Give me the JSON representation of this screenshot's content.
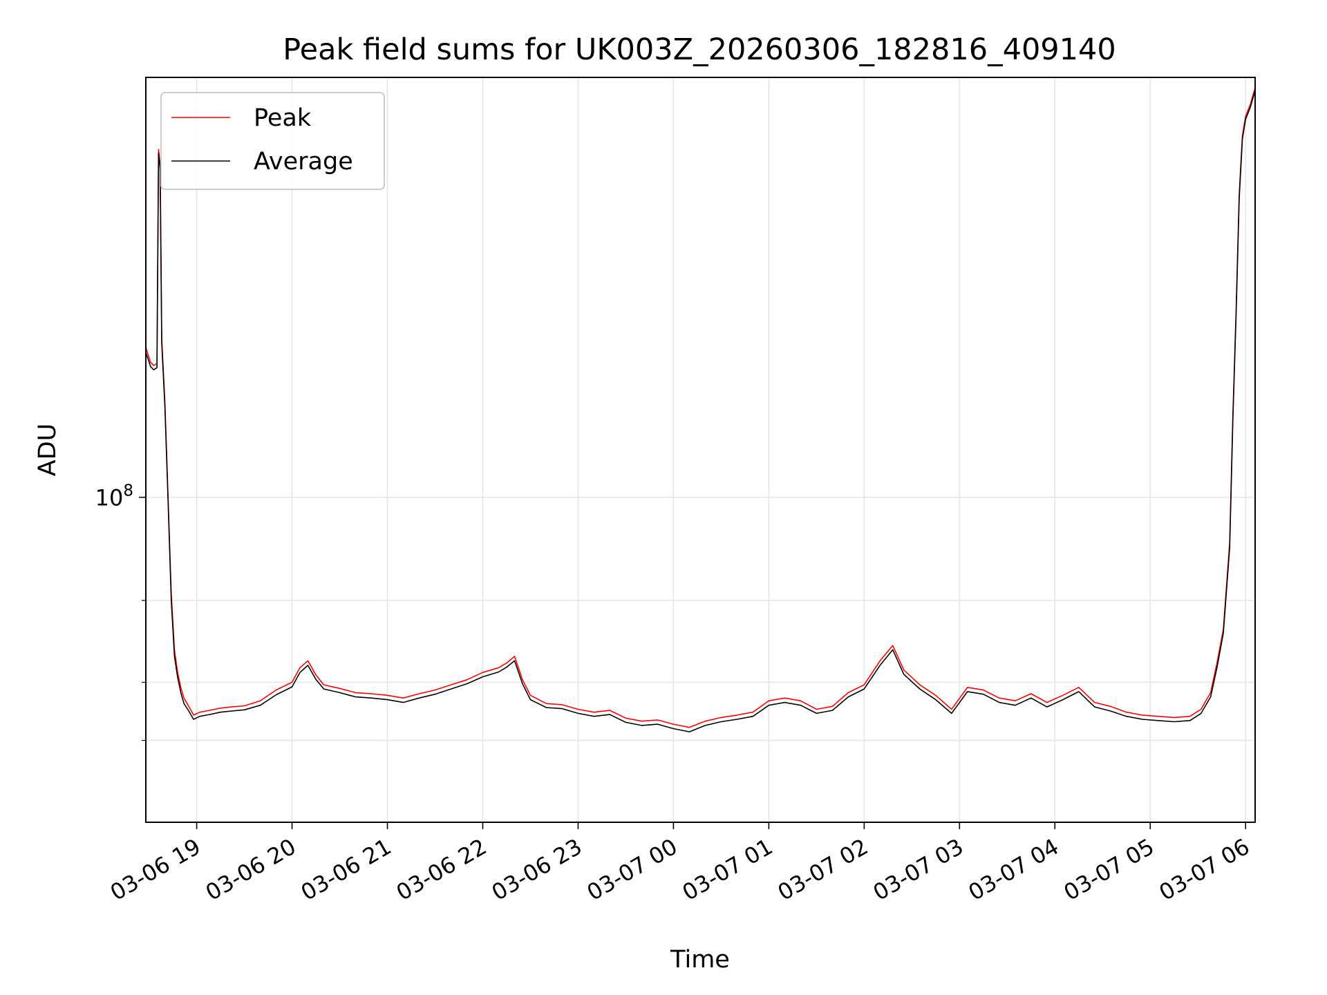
{
  "chart_data": {
    "type": "line",
    "title": "Peak field sums for UK003Z_20260306_182816_409140",
    "xlabel": "Time",
    "ylabel": "ADU",
    "yscale": "log",
    "grid": true,
    "legend_position": "top-left",
    "colors": {
      "Peak": "#ff0000",
      "Average": "#000000",
      "grid": "#e6e6e6"
    },
    "xlim": [
      "2026-03-06 18:28",
      "2026-03-07 06:06"
    ],
    "ylim": [
      20000000,
      800000000
    ],
    "x_ticks": [
      {
        "t": "2026-03-06 19:00",
        "label": "03-06 19"
      },
      {
        "t": "2026-03-06 20:00",
        "label": "03-06 20"
      },
      {
        "t": "2026-03-06 21:00",
        "label": "03-06 21"
      },
      {
        "t": "2026-03-06 22:00",
        "label": "03-06 22"
      },
      {
        "t": "2026-03-06 23:00",
        "label": "03-06 23"
      },
      {
        "t": "2026-03-07 00:00",
        "label": "03-07 00"
      },
      {
        "t": "2026-03-07 01:00",
        "label": "03-07 01"
      },
      {
        "t": "2026-03-07 02:00",
        "label": "03-07 02"
      },
      {
        "t": "2026-03-07 03:00",
        "label": "03-07 03"
      },
      {
        "t": "2026-03-07 04:00",
        "label": "03-07 04"
      },
      {
        "t": "2026-03-07 05:00",
        "label": "03-07 05"
      },
      {
        "t": "2026-03-07 06:00",
        "label": "03-07 06"
      }
    ],
    "y_ticks": [
      {
        "value": 100000000,
        "base": "10",
        "exp": "8"
      }
    ],
    "y_minor_ticks": [
      30000000,
      40000000,
      60000000
    ],
    "series": [
      {
        "name": "Peak",
        "x": [
          "2026-03-06 18:28",
          "2026-03-06 18:31",
          "2026-03-06 18:33",
          "2026-03-06 18:35",
          "2026-03-06 18:36",
          "2026-03-06 18:37",
          "2026-03-06 18:38",
          "2026-03-06 18:40",
          "2026-03-06 18:42",
          "2026-03-06 18:44",
          "2026-03-06 18:46",
          "2026-03-06 18:48",
          "2026-03-06 18:50",
          "2026-03-06 18:52",
          "2026-03-06 18:55",
          "2026-03-06 18:58",
          "2026-03-06 19:02",
          "2026-03-06 19:08",
          "2026-03-06 19:15",
          "2026-03-06 19:22",
          "2026-03-06 19:30",
          "2026-03-06 19:40",
          "2026-03-06 19:50",
          "2026-03-06 20:00",
          "2026-03-06 20:05",
          "2026-03-06 20:10",
          "2026-03-06 20:15",
          "2026-03-06 20:20",
          "2026-03-06 20:30",
          "2026-03-06 20:40",
          "2026-03-06 20:50",
          "2026-03-06 21:00",
          "2026-03-06 21:10",
          "2026-03-06 21:20",
          "2026-03-06 21:30",
          "2026-03-06 21:40",
          "2026-03-06 21:50",
          "2026-03-06 22:00",
          "2026-03-06 22:10",
          "2026-03-06 22:15",
          "2026-03-06 22:20",
          "2026-03-06 22:25",
          "2026-03-06 22:30",
          "2026-03-06 22:40",
          "2026-03-06 22:50",
          "2026-03-06 23:00",
          "2026-03-06 23:10",
          "2026-03-06 23:20",
          "2026-03-06 23:30",
          "2026-03-06 23:40",
          "2026-03-06 23:50",
          "2026-03-07 00:00",
          "2026-03-07 00:10",
          "2026-03-07 00:20",
          "2026-03-07 00:30",
          "2026-03-07 00:40",
          "2026-03-07 00:50",
          "2026-03-07 01:00",
          "2026-03-07 01:10",
          "2026-03-07 01:20",
          "2026-03-07 01:30",
          "2026-03-07 01:40",
          "2026-03-07 01:50",
          "2026-03-07 02:00",
          "2026-03-07 02:10",
          "2026-03-07 02:18",
          "2026-03-07 02:25",
          "2026-03-07 02:35",
          "2026-03-07 02:45",
          "2026-03-07 02:55",
          "2026-03-07 03:05",
          "2026-03-07 03:15",
          "2026-03-07 03:25",
          "2026-03-07 03:35",
          "2026-03-07 03:45",
          "2026-03-07 03:55",
          "2026-03-07 04:05",
          "2026-03-07 04:15",
          "2026-03-07 04:25",
          "2026-03-07 04:35",
          "2026-03-07 04:45",
          "2026-03-07 04:55",
          "2026-03-07 05:05",
          "2026-03-07 05:15",
          "2026-03-07 05:25",
          "2026-03-07 05:32",
          "2026-03-07 05:38",
          "2026-03-07 05:42",
          "2026-03-07 05:46",
          "2026-03-07 05:50",
          "2026-03-07 05:52",
          "2026-03-07 05:54",
          "2026-03-07 05:56",
          "2026-03-07 05:58",
          "2026-03-07 06:00",
          "2026-03-07 06:03",
          "2026-03-07 06:06"
        ],
        "y": [
          210000000,
          195000000,
          192000000,
          194000000,
          560000000,
          520000000,
          220000000,
          160000000,
          100000000,
          62000000,
          47000000,
          42000000,
          39000000,
          37000000,
          35500000,
          34000000,
          34500000,
          34800000,
          35200000,
          35400000,
          35600000,
          36500000,
          38500000,
          40000000,
          43000000,
          44500000,
          41500000,
          39500000,
          38800000,
          38000000,
          37800000,
          37500000,
          37000000,
          37800000,
          38500000,
          39500000,
          40500000,
          42000000,
          43000000,
          44000000,
          45500000,
          40500000,
          37500000,
          36000000,
          35800000,
          35000000,
          34500000,
          34800000,
          33500000,
          33000000,
          33200000,
          32500000,
          32000000,
          33000000,
          33600000,
          34000000,
          34500000,
          36500000,
          37000000,
          36500000,
          35000000,
          35500000,
          38000000,
          39500000,
          44500000,
          48000000,
          42500000,
          39500000,
          37500000,
          35000000,
          39000000,
          38500000,
          37000000,
          36500000,
          37800000,
          36200000,
          37500000,
          39000000,
          36200000,
          35500000,
          34500000,
          34000000,
          33800000,
          33600000,
          33800000,
          35000000,
          38000000,
          44000000,
          52000000,
          80000000,
          150000000,
          250000000,
          450000000,
          600000000,
          660000000,
          700000000,
          760000000
        ]
      },
      {
        "name": "Average",
        "x": [
          "2026-03-06 18:28",
          "2026-03-06 18:31",
          "2026-03-06 18:33",
          "2026-03-06 18:35",
          "2026-03-06 18:36",
          "2026-03-06 18:37",
          "2026-03-06 18:38",
          "2026-03-06 18:40",
          "2026-03-06 18:42",
          "2026-03-06 18:44",
          "2026-03-06 18:46",
          "2026-03-06 18:48",
          "2026-03-06 18:50",
          "2026-03-06 18:52",
          "2026-03-06 18:55",
          "2026-03-06 18:58",
          "2026-03-06 19:02",
          "2026-03-06 19:08",
          "2026-03-06 19:15",
          "2026-03-06 19:22",
          "2026-03-06 19:30",
          "2026-03-06 19:40",
          "2026-03-06 19:50",
          "2026-03-06 20:00",
          "2026-03-06 20:05",
          "2026-03-06 20:10",
          "2026-03-06 20:15",
          "2026-03-06 20:20",
          "2026-03-06 20:30",
          "2026-03-06 20:40",
          "2026-03-06 20:50",
          "2026-03-06 21:00",
          "2026-03-06 21:10",
          "2026-03-06 21:20",
          "2026-03-06 21:30",
          "2026-03-06 21:40",
          "2026-03-06 21:50",
          "2026-03-06 22:00",
          "2026-03-06 22:10",
          "2026-03-06 22:15",
          "2026-03-06 22:20",
          "2026-03-06 22:25",
          "2026-03-06 22:30",
          "2026-03-06 22:40",
          "2026-03-06 22:50",
          "2026-03-06 23:00",
          "2026-03-06 23:10",
          "2026-03-06 23:20",
          "2026-03-06 23:30",
          "2026-03-06 23:40",
          "2026-03-06 23:50",
          "2026-03-07 00:00",
          "2026-03-07 00:10",
          "2026-03-07 00:20",
          "2026-03-07 00:30",
          "2026-03-07 00:40",
          "2026-03-07 00:50",
          "2026-03-07 01:00",
          "2026-03-07 01:10",
          "2026-03-07 01:20",
          "2026-03-07 01:30",
          "2026-03-07 01:40",
          "2026-03-07 01:50",
          "2026-03-07 02:00",
          "2026-03-07 02:10",
          "2026-03-07 02:18",
          "2026-03-07 02:25",
          "2026-03-07 02:35",
          "2026-03-07 02:45",
          "2026-03-07 02:55",
          "2026-03-07 03:05",
          "2026-03-07 03:15",
          "2026-03-07 03:25",
          "2026-03-07 03:35",
          "2026-03-07 03:45",
          "2026-03-07 03:55",
          "2026-03-07 04:05",
          "2026-03-07 04:15",
          "2026-03-07 04:25",
          "2026-03-07 04:35",
          "2026-03-07 04:45",
          "2026-03-07 04:55",
          "2026-03-07 05:05",
          "2026-03-07 05:15",
          "2026-03-07 05:25",
          "2026-03-07 05:32",
          "2026-03-07 05:38",
          "2026-03-07 05:42",
          "2026-03-07 05:46",
          "2026-03-07 05:50",
          "2026-03-07 05:52",
          "2026-03-07 05:54",
          "2026-03-07 05:56",
          "2026-03-07 05:58",
          "2026-03-07 06:00",
          "2026-03-07 06:03",
          "2026-03-07 06:06"
        ],
        "y": [
          205000000,
          191000000,
          188000000,
          190000000,
          550000000,
          510000000,
          215000000,
          156000000,
          98000000,
          60000000,
          45500000,
          41000000,
          38000000,
          36000000,
          34700000,
          33300000,
          33800000,
          34100000,
          34500000,
          34700000,
          34900000,
          35700000,
          37600000,
          39100000,
          42000000,
          43500000,
          40600000,
          38700000,
          38000000,
          37200000,
          37000000,
          36700000,
          36200000,
          37000000,
          37700000,
          38700000,
          39700000,
          41100000,
          42100000,
          43100000,
          44500000,
          39700000,
          36700000,
          35300000,
          35100000,
          34300000,
          33800000,
          34100000,
          32800000,
          32300000,
          32500000,
          31800000,
          31300000,
          32300000,
          32900000,
          33300000,
          33800000,
          35700000,
          36200000,
          35700000,
          34300000,
          34800000,
          37200000,
          38700000,
          43500000,
          47000000,
          41600000,
          38700000,
          36700000,
          34300000,
          38200000,
          37700000,
          36200000,
          35700000,
          37000000,
          35400000,
          36700000,
          38200000,
          35400000,
          34700000,
          33800000,
          33300000,
          33100000,
          32900000,
          33100000,
          34300000,
          37200000,
          43000000,
          51000000,
          78000000,
          147000000,
          245000000,
          440000000,
          590000000,
          650000000,
          690000000,
          750000000
        ]
      }
    ]
  }
}
